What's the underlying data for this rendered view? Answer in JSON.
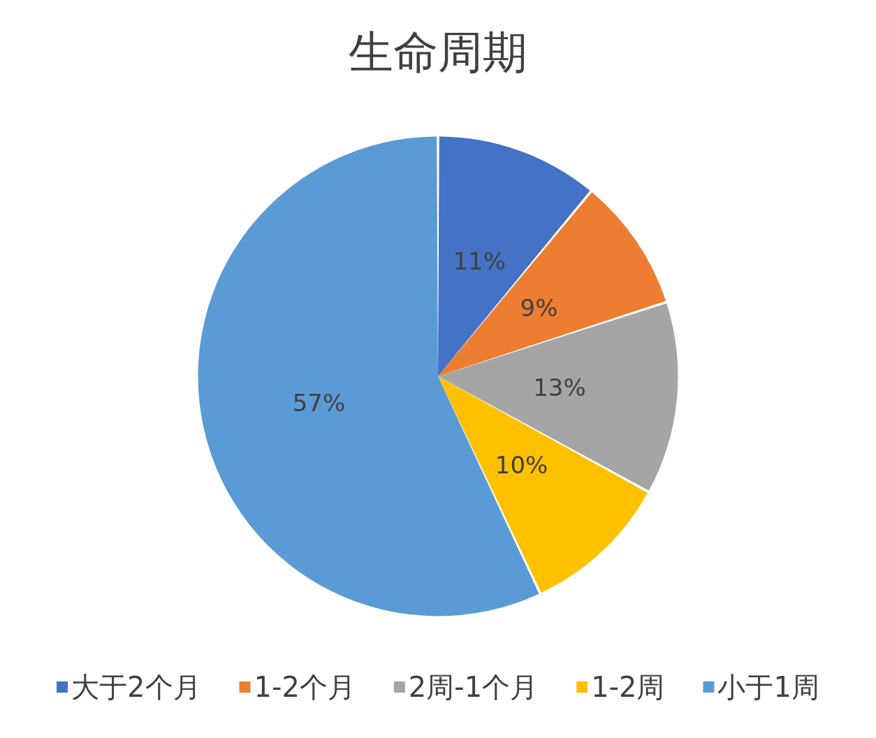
{
  "chart_data": {
    "type": "pie",
    "title": "生命周期",
    "categories": [
      "大于2个月",
      "1-2个月",
      "2周-1个月",
      "1-2周",
      "小于1周"
    ],
    "values": [
      11,
      9,
      13,
      10,
      57
    ],
    "value_labels": [
      "11%",
      "9%",
      "13%",
      "10%",
      "57%"
    ],
    "colors": [
      "#4472c4",
      "#ed7d31",
      "#a5a5a5",
      "#ffc000",
      "#5b9bd5"
    ],
    "legend": "bottom"
  }
}
